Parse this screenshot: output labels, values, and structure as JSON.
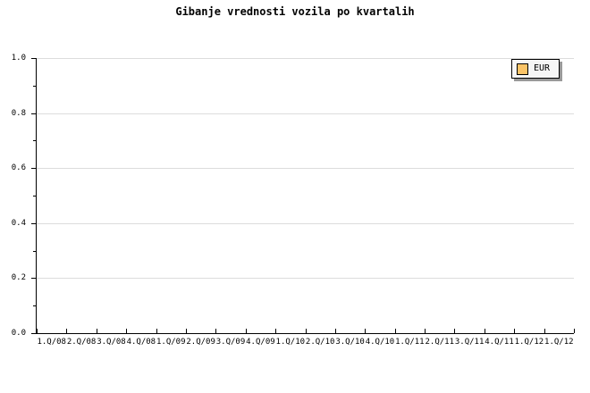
{
  "title": "Gibanje vrednosti vozila po kvartalih",
  "legend": {
    "label": "EUR",
    "swatch_color": "#FBC468",
    "position": "top-right"
  },
  "colors": {
    "background": "#FFFFFF",
    "axis": "#000000",
    "grid": "#DCDCDC",
    "legend_background": "#F6F6F6",
    "legend_border": "#000000",
    "legend_shadow": "#999999",
    "swatch": "#FBC468",
    "swatch_border": "#000000",
    "text": "#000000"
  },
  "chart_data": {
    "type": "line",
    "title": "Gibanje vrednosti vozila po kvartalih",
    "xlabel": "",
    "ylabel": "",
    "categories": [
      "1.Q/08",
      "2.Q/08",
      "3.Q/08",
      "4.Q/08",
      "1.Q/09",
      "2.Q/09",
      "3.Q/09",
      "4.Q/09",
      "1.Q/10",
      "2.Q/10",
      "3.Q/10",
      "4.Q/10",
      "1.Q/11",
      "2.Q/11",
      "3.Q/11",
      "4.Q/11",
      "1.Q/12",
      "1.Q/12"
    ],
    "series": [
      {
        "name": "EUR",
        "color": "#FBC468",
        "values": []
      }
    ],
    "ylim": [
      0.0,
      1.0
    ],
    "yticks": [
      0.0,
      0.2,
      0.4,
      0.6,
      0.8,
      1.0
    ],
    "ytick_labels": [
      "0.0",
      "0.2",
      "0.4",
      "0.6",
      "0.8",
      "1.0"
    ],
    "y_minor_tick_step": 0.1,
    "grid": true,
    "grid_axis": "y",
    "legend_position": "top-right",
    "legend_entries": [
      "EUR"
    ]
  }
}
